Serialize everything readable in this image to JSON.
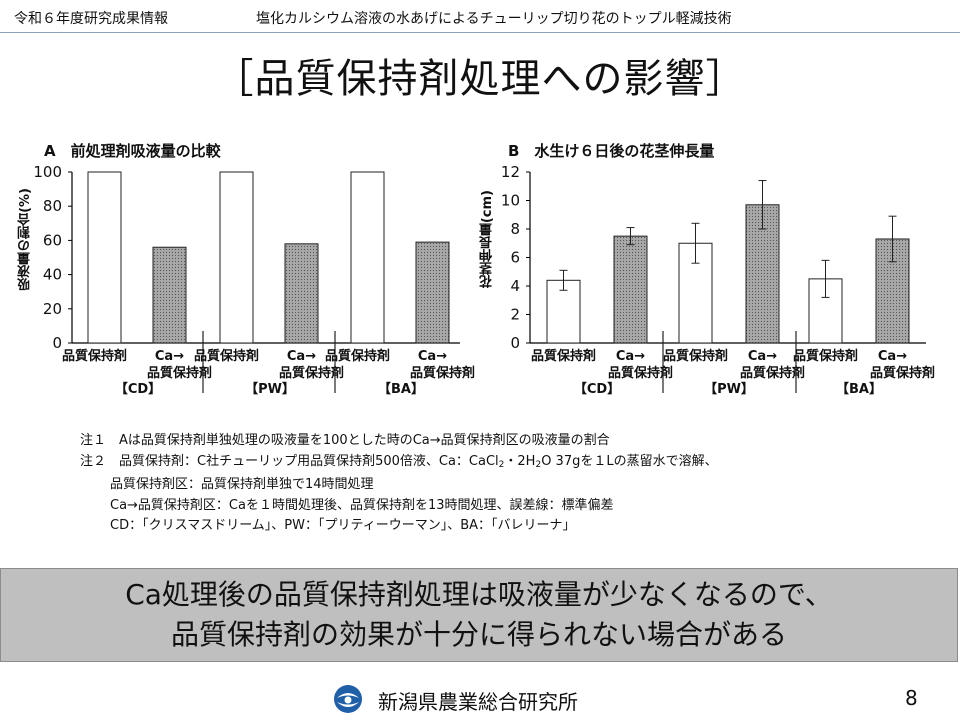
{
  "header": {
    "left_text": "令和６年度研究成果情報",
    "right_text": "塩化カルシウム溶液の水あげによるチューリップ切り花のトップル軽減技術"
  },
  "slide": {
    "title": "［品質保持剤処理への影響］"
  },
  "colors": {
    "bar_fill_quality": "#ffffff",
    "bar_fill_ca": "#a8a8a8",
    "conclusion_bg": "#bfbfbf"
  },
  "chart_data": [
    {
      "type": "bar",
      "title": "A　前処理剤吸液量の比較",
      "ylabel": "吸液量の割合(%)",
      "ylim": [
        0,
        100
      ],
      "yticks": [
        "0",
        "20",
        "40",
        "60",
        "80",
        "100"
      ],
      "groups": [
        "【CD】",
        "【PW】",
        "【BA】"
      ],
      "bar_labels": [
        {
          "line1": "品質保持剤",
          "line2": ""
        },
        {
          "line1": "Ca→",
          "line2": "品質保持剤"
        }
      ],
      "series": [
        {
          "values": [
            100,
            100,
            100
          ]
        },
        {
          "values": [
            56,
            58,
            59
          ]
        }
      ]
    },
    {
      "type": "bar",
      "title": "B　水生け６日後の花茎伸長量",
      "ylabel": "花茎伸長量(cm)",
      "ylim": [
        0,
        12
      ],
      "yticks": [
        "0",
        "2",
        "4",
        "6",
        "8",
        "10",
        "12"
      ],
      "groups": [
        "【CD】",
        "【PW】",
        "【BA】"
      ],
      "bar_labels": [
        {
          "line1": "品質保持剤",
          "line2": ""
        },
        {
          "line1": "Ca→",
          "line2": "品質保持剤"
        }
      ],
      "series": [
        {
          "values": [
            4.4,
            7.0,
            4.5
          ],
          "errors": [
            0.7,
            1.4,
            1.3
          ]
        },
        {
          "values": [
            7.5,
            9.7,
            7.3
          ],
          "errors": [
            0.6,
            1.7,
            1.6
          ]
        }
      ]
    }
  ],
  "notes": {
    "line1": "注１　Aは品質保持剤単独処理の吸液量を100とした時のCa→品質保持剤区の吸液量の割合",
    "line2_pre": "注２　品質保持剤：C社チューリップ用品質保持剤500倍液、Ca：CaCl",
    "line2_sub1": "2",
    "line2_mid": "・2H",
    "line2_sub2": "2",
    "line2_post": "O 37gを１Lの蒸留水で溶解、",
    "line3": "品質保持剤区：品質保持剤単独で14時間処理",
    "line4": "Ca→品質保持剤区：Caを１時間処理後、品質保持剤を13時間処理、誤差線：標準偏差",
    "line5": "CD：「クリスマスドリーム」、PW：「プリティーウーマン」、BA：「バレリーナ」"
  },
  "conclusion": {
    "line1": "Ca処理後の品質保持剤処理は吸液量が少なくなるので、",
    "line2": "品質保持剤の効果が十分に得られない場合がある"
  },
  "footer": {
    "logo_icon": "prefecture-logo-icon",
    "org_name": "新潟県農業総合研究所",
    "page_number": "8"
  }
}
